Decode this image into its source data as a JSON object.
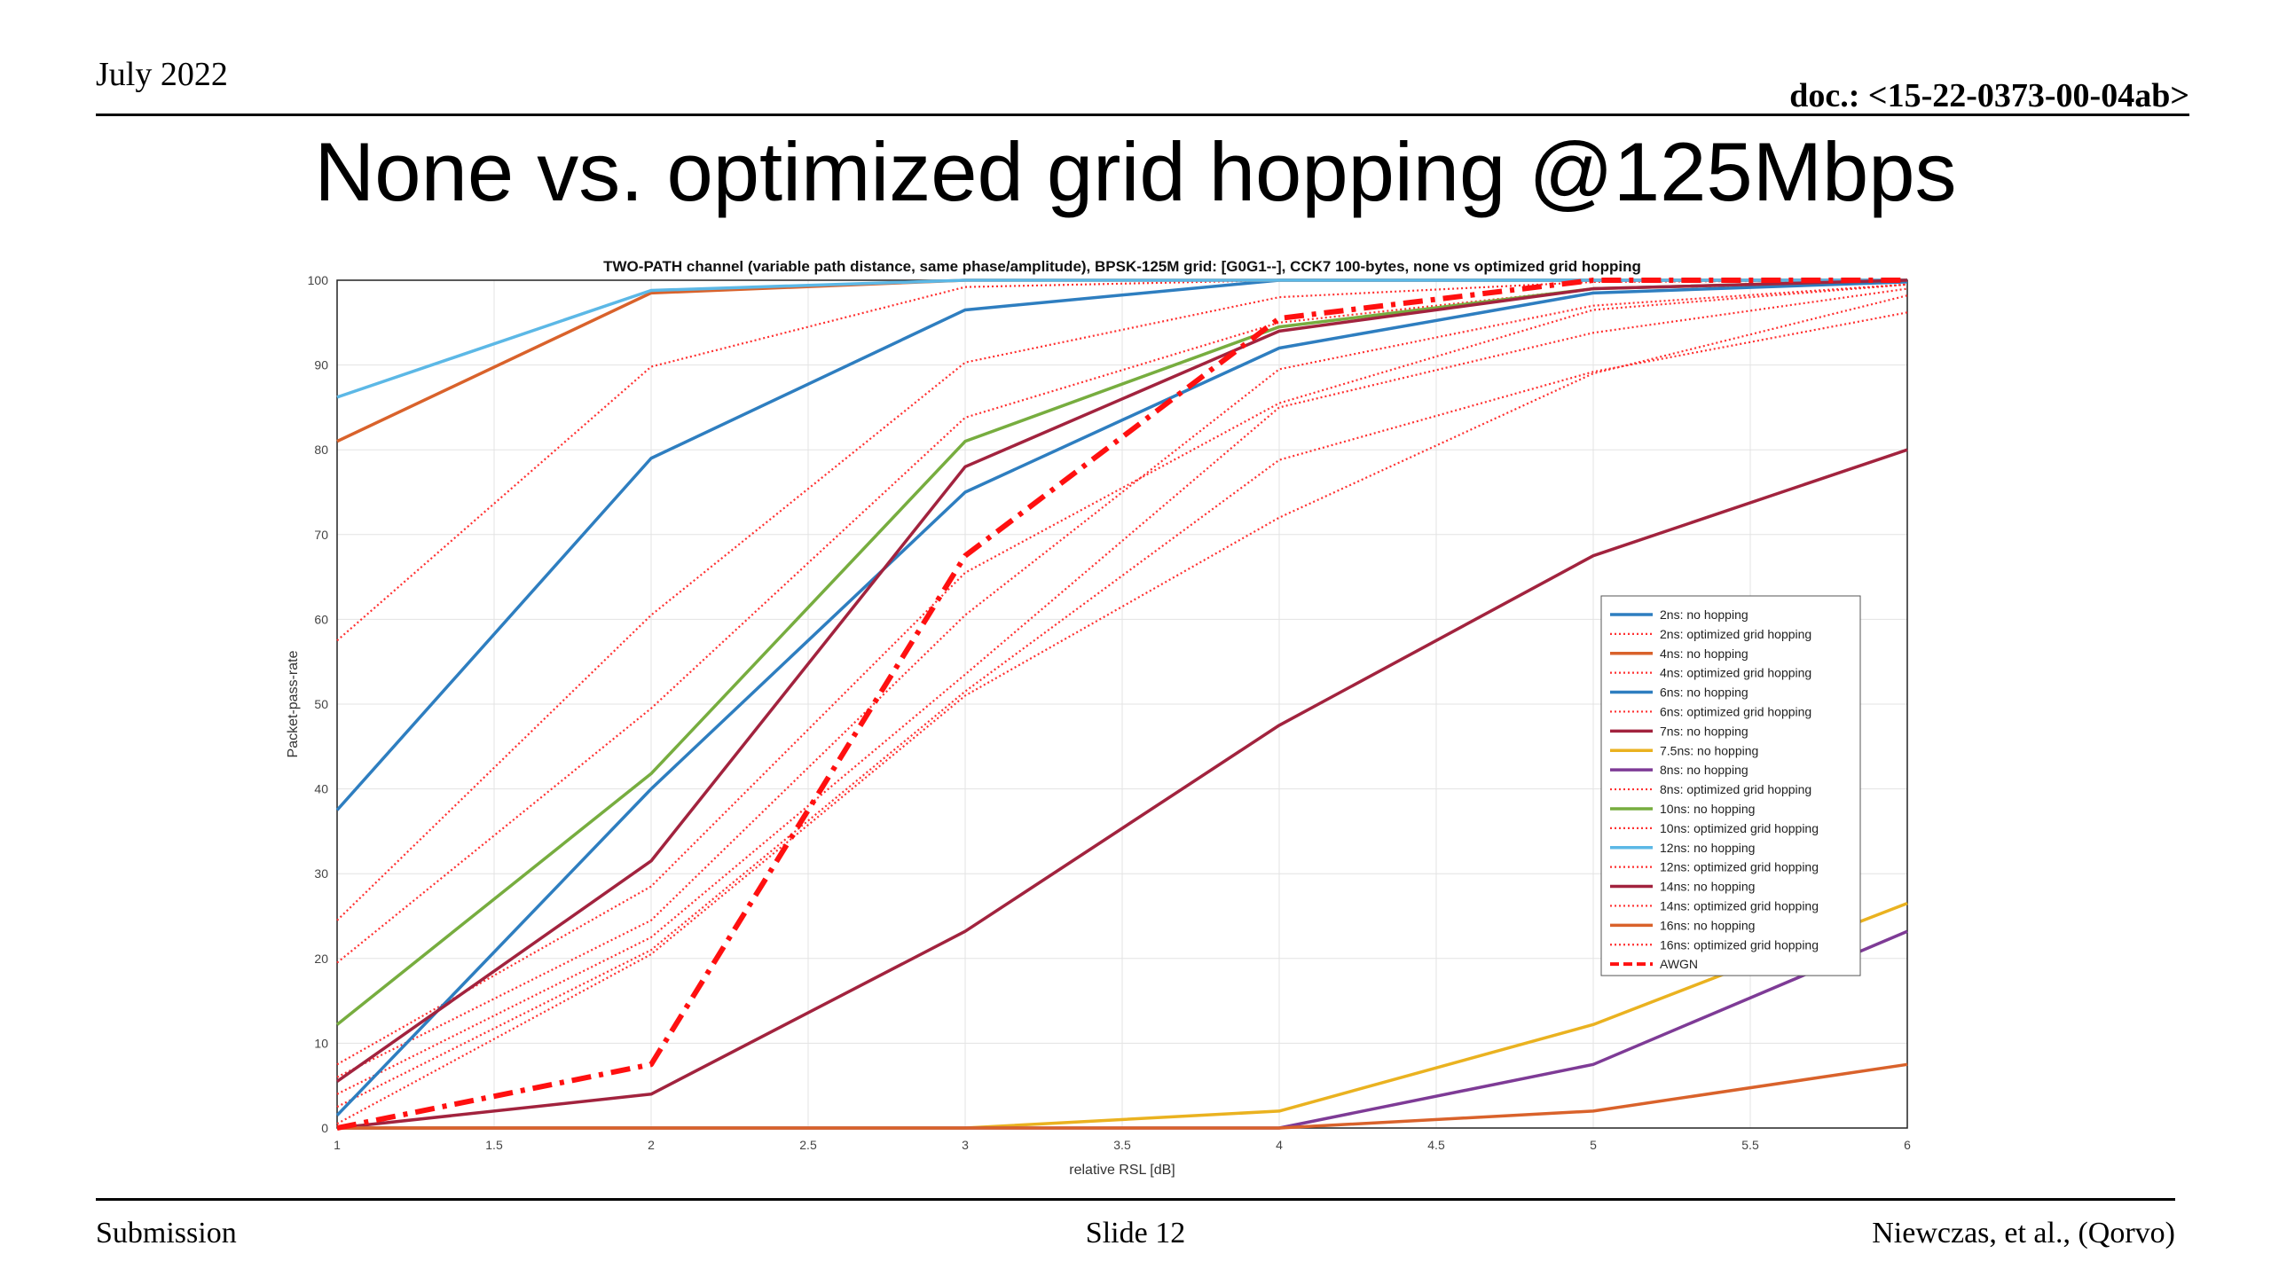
{
  "slide": {
    "date": "July 2022",
    "doc_id": "doc.: <15-22-0373-00-04ab>",
    "title": "None vs. optimized grid hopping @125Mbps",
    "footer_left": "Submission",
    "footer_center": "Slide 12",
    "footer_right": "Niewczas, et al., (Qorvo)"
  },
  "chart_data": {
    "type": "line",
    "title": "TWO-PATH channel (variable path distance, same phase/amplitude), BPSK-125M grid: [G0G1--], CCK7 100-bytes, none vs optimized grid hopping",
    "xlabel": "relative RSL [dB]",
    "ylabel": "Packet-pass-rate",
    "xlim": [
      1,
      6
    ],
    "ylim": [
      0,
      100
    ],
    "xticks": [
      "1",
      "1.5",
      "2",
      "2.5",
      "3",
      "3.5",
      "4",
      "4.5",
      "5",
      "5.5",
      "6"
    ],
    "yticks": [
      "0",
      "10",
      "20",
      "30",
      "40",
      "50",
      "60",
      "70",
      "80",
      "90",
      "100"
    ],
    "grid": true,
    "legend_position": "right",
    "x": [
      1,
      2,
      3,
      4,
      5,
      6
    ],
    "series": [
      {
        "name": "2ns: no hopping",
        "color": "#2E7EC0",
        "style": "solid",
        "values": [
          37.5,
          79,
          96.5,
          100,
          100,
          100
        ]
      },
      {
        "name": "2ns: optimized grid hopping",
        "color": "#FF3030",
        "style": "dotted",
        "values": [
          57.5,
          89.8,
          99.2,
          100,
          100,
          100
        ]
      },
      {
        "name": "4ns: no hopping",
        "color": "#D9622B",
        "style": "solid",
        "values": [
          81,
          98.5,
          100,
          100,
          100,
          100
        ]
      },
      {
        "name": "4ns: optimized grid hopping",
        "color": "#FF3030",
        "style": "dotted",
        "values": [
          24.5,
          60.5,
          90.3,
          98,
          99.8,
          100
        ]
      },
      {
        "name": "6ns: no hopping",
        "color": "#2E7EC0",
        "style": "solid",
        "values": [
          1.5,
          40,
          75,
          92,
          98.5,
          99.8
        ]
      },
      {
        "name": "6ns: optimized grid hopping",
        "color": "#FF3030",
        "style": "dotted",
        "values": [
          19.5,
          49.5,
          83.8,
          95,
          99,
          99.8
        ]
      },
      {
        "name": "7ns: no hopping",
        "color": "#A2233E",
        "style": "solid",
        "values": [
          0,
          4,
          23.2,
          47.5,
          67.5,
          80
        ]
      },
      {
        "name": "7.5ns: no hopping",
        "color": "#EAB220",
        "style": "solid",
        "values": [
          0,
          0,
          0,
          2,
          12.2,
          26.5
        ]
      },
      {
        "name": "8ns: no hopping",
        "color": "#7E3B96",
        "style": "solid",
        "values": [
          0,
          0,
          0,
          0,
          7.5,
          23.2
        ]
      },
      {
        "name": "8ns: optimized grid hopping",
        "color": "#FF3030",
        "style": "dotted",
        "values": [
          7.5,
          28.5,
          65.5,
          85.5,
          96.5,
          99.5
        ]
      },
      {
        "name": "10ns: no hopping",
        "color": "#77AD3F",
        "style": "solid",
        "values": [
          12.2,
          41.8,
          81,
          94.5,
          99,
          100
        ]
      },
      {
        "name": "10ns: optimized grid hopping",
        "color": "#FF3030",
        "style": "dotted",
        "values": [
          6,
          24.5,
          60.5,
          89.5,
          97,
          99.5
        ]
      },
      {
        "name": "12ns: no hopping",
        "color": "#5CB8E6",
        "style": "solid",
        "values": [
          86.2,
          98.8,
          100,
          100,
          100,
          100
        ]
      },
      {
        "name": "12ns: optimized grid hopping",
        "color": "#FF3030",
        "style": "dotted",
        "values": [
          4,
          22.5,
          53.5,
          85,
          93.8,
          99
        ]
      },
      {
        "name": "14ns: no hopping",
        "color": "#A2233E",
        "style": "solid",
        "values": [
          5.5,
          31.5,
          78,
          94,
          99,
          100
        ]
      },
      {
        "name": "14ns: optimized grid hopping",
        "color": "#FF3030",
        "style": "dotted",
        "values": [
          2.5,
          21,
          51.5,
          78.8,
          89.2,
          96.2
        ]
      },
      {
        "name": "16ns: no hopping",
        "color": "#D9622B",
        "style": "solid",
        "values": [
          0,
          0,
          0,
          0,
          2,
          7.5
        ]
      },
      {
        "name": "16ns: optimized grid hopping",
        "color": "#FF3030",
        "style": "dotted",
        "values": [
          0.5,
          20.5,
          51,
          72,
          89,
          98.2
        ]
      },
      {
        "name": "AWGN",
        "color": "#FF1010",
        "style": "dashdot",
        "values": [
          0,
          7.5,
          67.5,
          95.5,
          100,
          100
        ]
      }
    ]
  }
}
